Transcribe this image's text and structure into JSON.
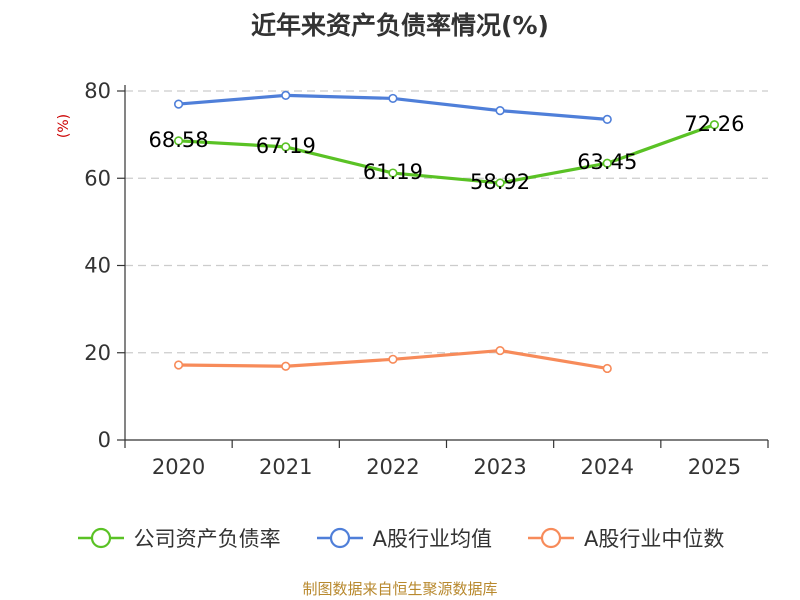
{
  "chart_data": {
    "type": "line",
    "title": "近年来资产负债率情况(%)",
    "ylabel": "(%)",
    "categories": [
      "2020",
      "2021",
      "2022",
      "2023",
      "2024",
      "2025"
    ],
    "yticks": [
      "0",
      "20",
      "40",
      "60",
      "80"
    ],
    "ylim": [
      0,
      80
    ],
    "grid": true,
    "legend_position": "bottom",
    "series": [
      {
        "name": "公司资产负债率",
        "color": "#5ac225",
        "values": [
          68.58,
          67.19,
          61.19,
          58.92,
          63.45,
          72.26
        ],
        "labels": [
          "68.58",
          "67.19",
          "61.19",
          "58.92",
          "63.45",
          "72.26"
        ]
      },
      {
        "name": "A股行业均值",
        "color": "#4f7fd9",
        "values": [
          77.0,
          79.0,
          78.3,
          75.5,
          73.5,
          null
        ]
      },
      {
        "name": "A股行业中位数",
        "color": "#f78b5a",
        "values": [
          17.2,
          16.9,
          18.5,
          20.5,
          16.4,
          null
        ]
      }
    ]
  },
  "source_text": "制图数据来自恒生聚源数据库"
}
